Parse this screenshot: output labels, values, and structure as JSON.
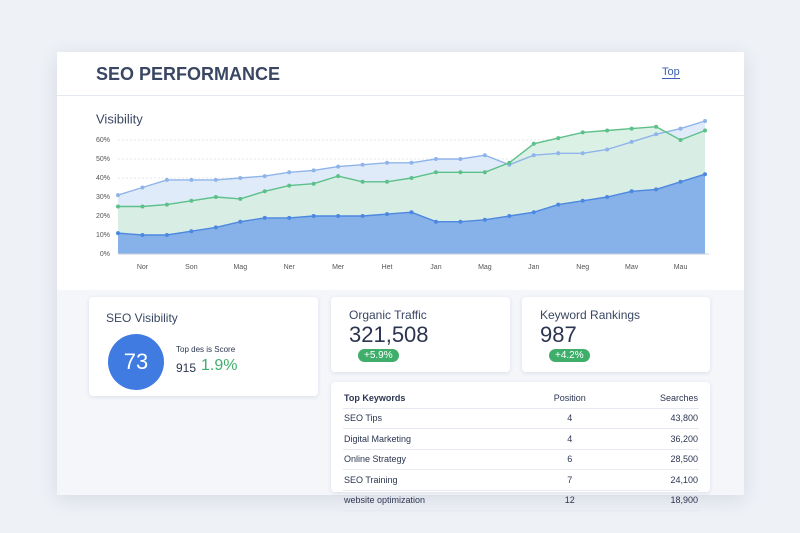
{
  "header": {
    "title": "SEO PERFORMANCE",
    "link": "Top"
  },
  "chart_data": {
    "type": "area",
    "title": "Visibility",
    "categories": [
      null,
      "Nor",
      null,
      "Son",
      null,
      "Mag",
      null,
      "Ner",
      null,
      "Mer",
      null,
      "Het",
      null,
      "Jan",
      null,
      "Mag",
      null,
      "Jan",
      null,
      "Neg",
      null,
      "Mav",
      null,
      "Mau",
      null
    ],
    "series": [
      {
        "color": "#8fb4ea",
        "fill": "#dbe7f8",
        "values": [
          31,
          35,
          39,
          39,
          39,
          40,
          41,
          43,
          44,
          46,
          47,
          48,
          48,
          50,
          50,
          52,
          47,
          52,
          53,
          53,
          55,
          59,
          63,
          66,
          70
        ]
      },
      {
        "color": "#5cc08a",
        "fill": "#d6efe2",
        "values": [
          25,
          25,
          26,
          28,
          30,
          29,
          33,
          36,
          37,
          41,
          38,
          38,
          40,
          43,
          43,
          43,
          48,
          58,
          61,
          64,
          65,
          66,
          67,
          60,
          65
        ]
      },
      {
        "color": "#4d88e0",
        "fill": "#79a6ea",
        "values": [
          11,
          10,
          10,
          12,
          14,
          17,
          19,
          19,
          20,
          20,
          20,
          21,
          22,
          17,
          17,
          18,
          20,
          22,
          26,
          28,
          30,
          33,
          34,
          38,
          42
        ]
      }
    ],
    "ylim": [
      0,
      70
    ],
    "yticks": [
      {
        "value": 0,
        "label": "0%"
      },
      {
        "value": 10,
        "label": "10%"
      },
      {
        "value": 20,
        "label": "20%"
      },
      {
        "value": 30,
        "label": "30%"
      },
      {
        "value": 40,
        "label": "40%"
      },
      {
        "value": 50,
        "label": "50%"
      },
      {
        "value": 60,
        "label": "60%"
      }
    ],
    "grid": true
  },
  "cards": [
    {
      "title": "SEO Visibility",
      "value": "73",
      "caption": "Top des is Score",
      "sub": "915",
      "change": "1.9%"
    },
    {
      "title": "Organic Traffic",
      "value": "321,508",
      "change": "+5.9%"
    },
    {
      "title": "Keyword Rankings",
      "value": "987",
      "change": "+4.2%"
    }
  ],
  "table": {
    "header": [
      "Top Keywords",
      "Position",
      "Searches"
    ],
    "rows": [
      [
        "SEO Tips",
        "4",
        "43,800"
      ],
      [
        "Digital Marketing",
        "4",
        "36,200"
      ],
      [
        "Online Strategy",
        "6",
        "28,500"
      ],
      [
        "SEO Training",
        "7",
        "24,100"
      ],
      [
        "website optimization",
        "12",
        "18,900"
      ]
    ]
  }
}
